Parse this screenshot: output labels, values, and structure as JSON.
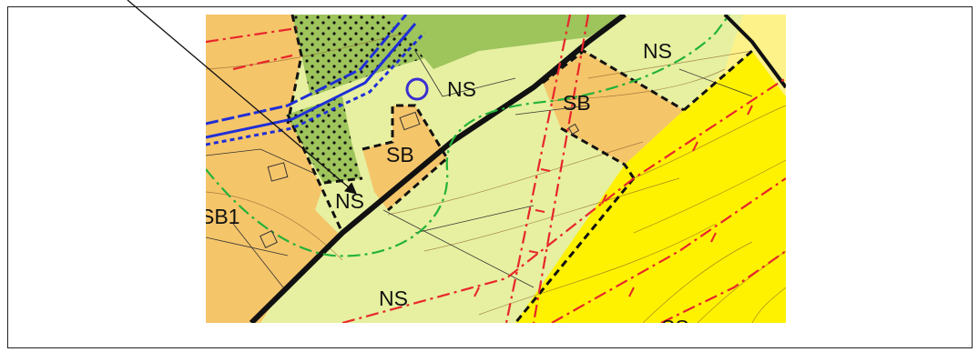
{
  "map": {
    "labels": {
      "ns_top_right": "NS",
      "ns_center": "NS",
      "ns_arrow": "NS",
      "ns_bottom": "NS",
      "sb_right": "SB",
      "sb_center": "SB",
      "sb1_left": "SB1",
      "partial_bottom": "SS"
    },
    "colors": {
      "light_green_zone": "#e6f0a0",
      "dark_green_zone": "#9ec45c",
      "orange_zone": "#f5c56a",
      "yellow_zone": "#fff200",
      "light_yellow_zone": "#fdf28a",
      "red_line": "#e8262b",
      "green_line": "#23b23a",
      "blue_line": "#1f2fd6",
      "marker_circle": "#3a2fd0",
      "boundary_black": "#111111"
    },
    "icons": {
      "marker": "circle-marker-icon",
      "arrow": "arrow-pointer-icon"
    }
  }
}
